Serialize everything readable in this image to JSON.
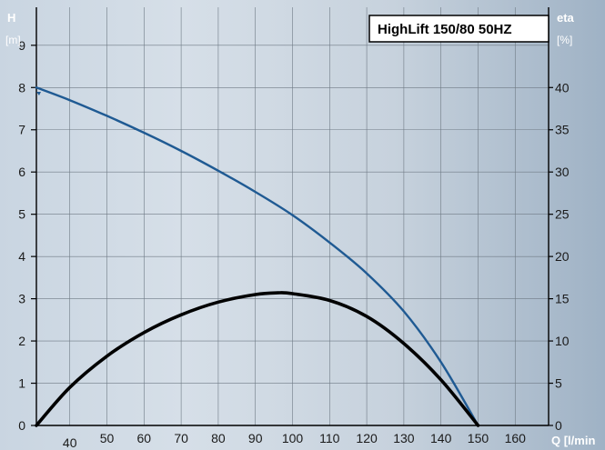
{
  "chart_data": {
    "type": "line",
    "title": "HighLift 150/80 50HZ",
    "y_left": {
      "label": "H",
      "unit": "[m]",
      "ticks": [
        0,
        1,
        2,
        3,
        4,
        5,
        6,
        7,
        8,
        9
      ],
      "range": [
        0,
        9.9
      ]
    },
    "y_right": {
      "label": "eta",
      "unit": "[%]",
      "ticks": [
        0,
        5,
        10,
        15,
        20,
        25,
        30,
        35,
        40
      ],
      "range": [
        0,
        49.5
      ]
    },
    "x": {
      "label": "Q [l/min",
      "ticks": [
        40,
        50,
        60,
        70,
        80,
        90,
        100,
        110,
        120,
        130,
        140,
        150,
        160
      ],
      "range": [
        31,
        169
      ]
    },
    "grid": true,
    "series": [
      {
        "id": "head",
        "axis": "left",
        "color": "#1f5a93",
        "x": [
          31,
          40,
          50,
          60,
          70,
          80,
          90,
          100,
          110,
          120,
          130,
          140,
          150
        ],
        "y": [
          8.0,
          7.7,
          7.33,
          6.93,
          6.5,
          6.03,
          5.53,
          4.98,
          4.33,
          3.6,
          2.7,
          1.5,
          0.0
        ]
      },
      {
        "id": "efficiency",
        "axis": "right",
        "color": "#000000",
        "x": [
          31,
          40,
          50,
          60,
          70,
          80,
          90,
          96,
          100,
          110,
          120,
          130,
          140,
          150
        ],
        "y": [
          0,
          4.5,
          8.2,
          11.0,
          13.1,
          14.6,
          15.5,
          15.7,
          15.6,
          14.8,
          12.9,
          9.7,
          5.4,
          0
        ]
      }
    ]
  }
}
